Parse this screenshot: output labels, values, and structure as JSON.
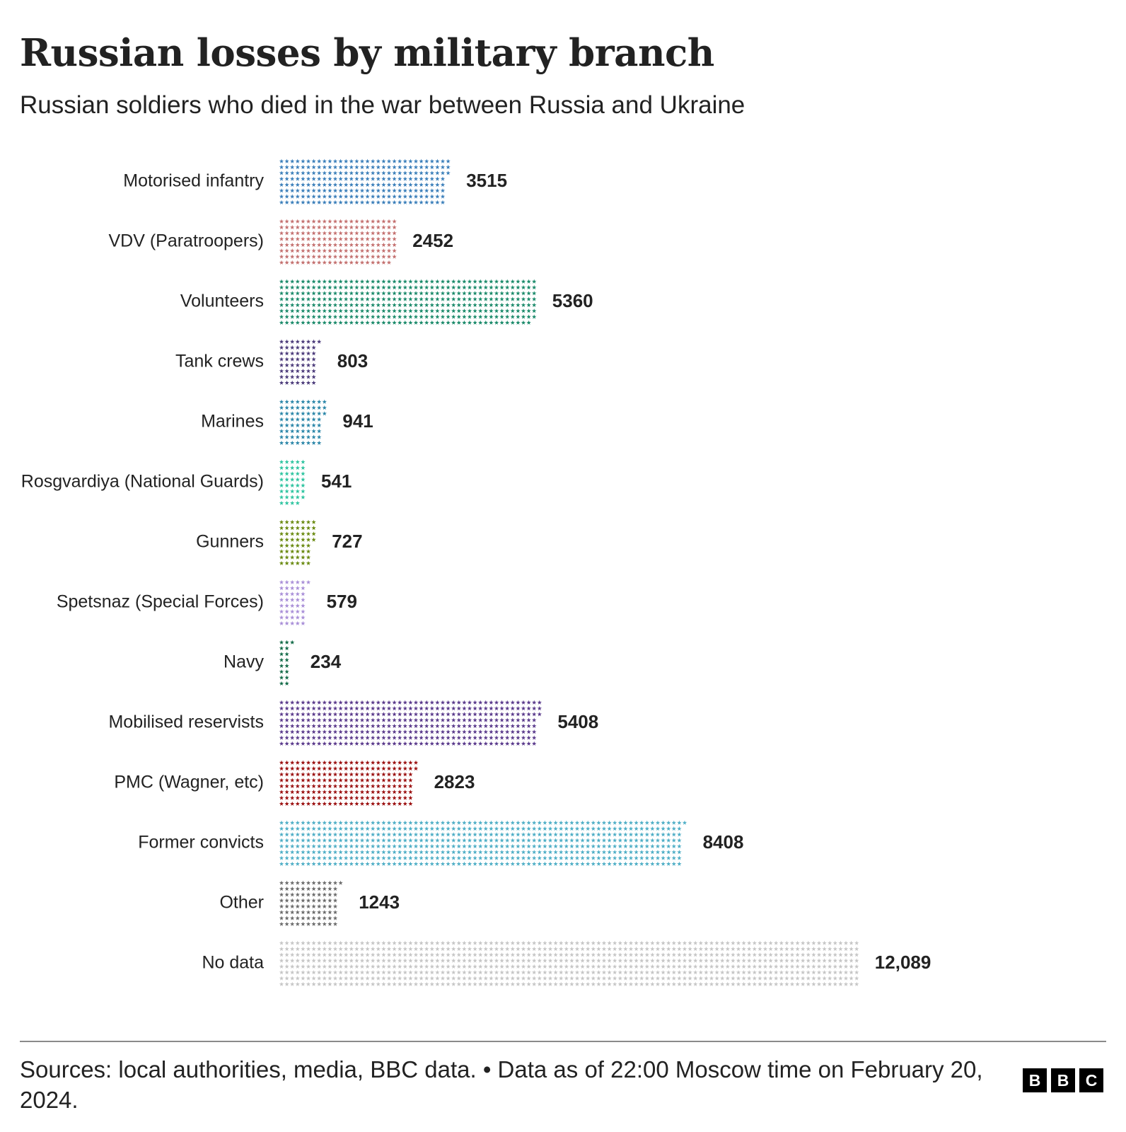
{
  "header": {
    "title": "Russian losses by military branch",
    "subtitle": "Russian soldiers who died in the war between Russia and Ukraine"
  },
  "footer": {
    "source": "Sources: local authorities, media, BBC data. • Data as of 22:00 Moscow time on February 20, 2024.",
    "logo_letters": [
      "B",
      "B",
      "C"
    ]
  },
  "chart_data": {
    "type": "bar",
    "orientation": "horizontal",
    "mark": "pictogram-stars",
    "categories": [
      "Motorised infantry",
      "VDV (Paratroopers)",
      "Volunteers",
      "Tank crews",
      "Marines",
      "Rosgvardiya (National Guards)",
      "Gunners",
      "Spetsnaz (Special Forces)",
      "Navy",
      "Mobilised reservists",
      "PMC (Wagner, etc)",
      "Former convicts",
      "Other",
      "No data"
    ],
    "values": [
      3515,
      2452,
      5360,
      803,
      941,
      541,
      727,
      579,
      234,
      5408,
      2823,
      8408,
      1243,
      12089
    ],
    "value_labels": [
      "3515",
      "2452",
      "5360",
      "803",
      "941",
      "541",
      "727",
      "579",
      "234",
      "5408",
      "2823",
      "8408",
      "1243",
      "12,089"
    ],
    "colors": [
      "#3b7fba",
      "#c4706f",
      "#1a8a6a",
      "#4b3a7a",
      "#2a86a8",
      "#2ec4a0",
      "#6a8a10",
      "#a98fd8",
      "#136b48",
      "#5a3a8c",
      "#9b1010",
      "#4eaec6",
      "#6b6b6b",
      "#c6c6c6"
    ],
    "legend": "none",
    "grid": false
  }
}
